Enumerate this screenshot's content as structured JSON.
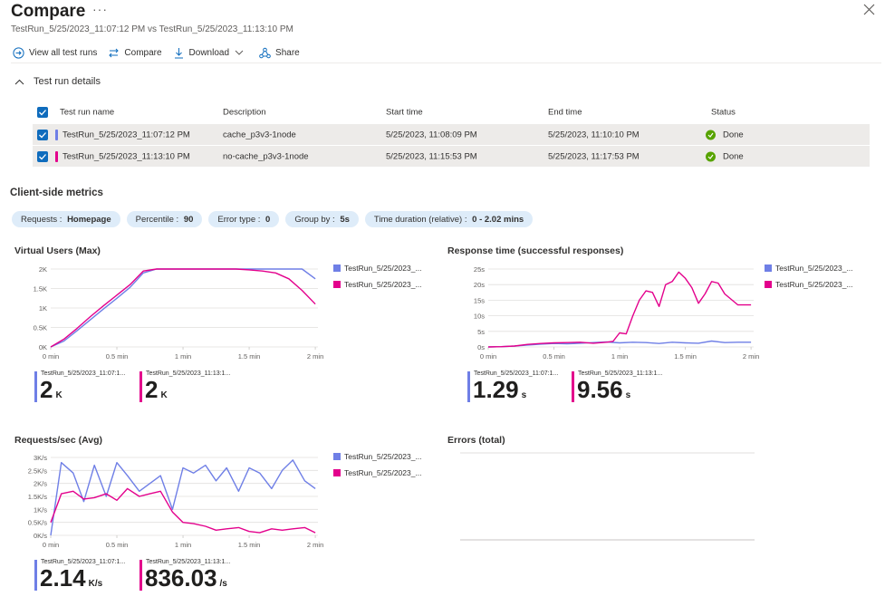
{
  "header": {
    "title": "Compare",
    "more": "···",
    "subtitle": "TestRun_5/25/2023_11:07:12 PM vs TestRun_5/25/2023_11:13:10 PM"
  },
  "toolbar": {
    "view_all": "View all test runs",
    "compare": "Compare",
    "download": "Download",
    "share": "Share"
  },
  "details": {
    "section_label": "Test run details",
    "columns": [
      "Test run name",
      "Description",
      "Start time",
      "End time",
      "Status"
    ],
    "rows": [
      {
        "name": "TestRun_5/25/2023_11:07:12 PM",
        "description": "cache_p3v3-1node",
        "start": "5/25/2023, 11:08:09 PM",
        "end": "5/25/2023, 11:10:10 PM",
        "status": "Done",
        "color": "#6f7fe6"
      },
      {
        "name": "TestRun_5/25/2023_11:13:10 PM",
        "description": "no-cache_p3v3-1node",
        "start": "5/25/2023, 11:15:53 PM",
        "end": "5/25/2023, 11:17:53 PM",
        "status": "Done",
        "color": "#e3008c"
      }
    ]
  },
  "metrics": {
    "title": "Client-side metrics",
    "filters": [
      {
        "key": "Requests",
        "sep": " : ",
        "value": "Homepage"
      },
      {
        "key": "Percentile",
        "sep": " : ",
        "value": "90"
      },
      {
        "key": "Error type",
        "sep": " : ",
        "value": "0"
      },
      {
        "key": "Group by",
        "sep": " : ",
        "value": "5s"
      },
      {
        "key": "Time duration (relative)",
        "sep": " : ",
        "value": "0 - 2.02 mins"
      }
    ]
  },
  "colors": {
    "series1": "#6f7fe6",
    "series2": "#e3008c",
    "grid": "#e1dfdd",
    "axis": "#605e5c"
  },
  "chart_data": [
    {
      "type": "line",
      "title": "Virtual Users (Max)",
      "xlabel": "",
      "ylabel": "",
      "x_ticks": [
        "0 min",
        "0.5 min",
        "1 min",
        "1.5 min",
        "2 min"
      ],
      "y_ticks": [
        "0K",
        "0.5K",
        "1K",
        "1.5K",
        "2K"
      ],
      "xlim": [
        0,
        2.02
      ],
      "ylim": [
        0,
        2000
      ],
      "legend": [
        "TestRun_5/25/2023_...",
        "TestRun_5/25/2023_..."
      ],
      "series": [
        {
          "x": [
            0,
            0.1,
            0.2,
            0.3,
            0.4,
            0.5,
            0.6,
            0.7,
            0.8,
            0.9,
            1.0,
            1.1,
            1.2,
            1.3,
            1.4,
            1.5,
            1.6,
            1.7,
            1.8,
            1.9,
            2.0
          ],
          "y": [
            0,
            150,
            420,
            700,
            980,
            1250,
            1530,
            1900,
            2000,
            2000,
            2000,
            2000,
            2000,
            2000,
            2000,
            2000,
            2000,
            2000,
            2000,
            2000,
            1750
          ]
        },
        {
          "x": [
            0,
            0.1,
            0.2,
            0.3,
            0.4,
            0.5,
            0.6,
            0.7,
            0.8,
            0.9,
            1.0,
            1.1,
            1.2,
            1.3,
            1.4,
            1.5,
            1.6,
            1.7,
            1.8,
            1.9,
            2.0
          ],
          "y": [
            0,
            200,
            480,
            780,
            1060,
            1330,
            1600,
            1950,
            2000,
            2000,
            2000,
            2000,
            2000,
            2000,
            2000,
            1980,
            1950,
            1900,
            1750,
            1450,
            1100
          ]
        }
      ],
      "stats": [
        {
          "label": "TestRun_5/25/2023_11:07:1...",
          "value": "2",
          "unit": "K"
        },
        {
          "label": "TestRun_5/25/2023_11:13:1...",
          "value": "2",
          "unit": "K"
        }
      ]
    },
    {
      "type": "line",
      "title": "Response time (successful responses)",
      "xlabel": "",
      "ylabel": "",
      "x_ticks": [
        "0 min",
        "0.5 min",
        "1 min",
        "1.5 min",
        "2 min"
      ],
      "y_ticks": [
        "0s",
        "5s",
        "10s",
        "15s",
        "20s",
        "25s"
      ],
      "xlim": [
        0,
        2.02
      ],
      "ylim": [
        0,
        25
      ],
      "legend": [
        "TestRun_5/25/2023_...",
        "TestRun_5/25/2023_..."
      ],
      "series": [
        {
          "x": [
            0,
            0.1,
            0.2,
            0.3,
            0.4,
            0.5,
            0.6,
            0.7,
            0.8,
            0.9,
            1.0,
            1.1,
            1.2,
            1.3,
            1.4,
            1.5,
            1.6,
            1.7,
            1.8,
            1.9,
            2.0
          ],
          "y": [
            0,
            0.1,
            0.3,
            0.6,
            0.9,
            1.1,
            1.0,
            1.2,
            1.4,
            1.6,
            1.3,
            1.5,
            1.4,
            1.1,
            1.5,
            1.3,
            1.2,
            1.9,
            1.4,
            1.5,
            1.5
          ]
        },
        {
          "x": [
            0,
            0.1,
            0.2,
            0.3,
            0.4,
            0.5,
            0.6,
            0.7,
            0.8,
            0.9,
            0.95,
            1.0,
            1.05,
            1.1,
            1.15,
            1.2,
            1.25,
            1.3,
            1.35,
            1.4,
            1.45,
            1.5,
            1.55,
            1.6,
            1.65,
            1.7,
            1.75,
            1.8,
            1.9,
            2.0
          ],
          "y": [
            0,
            0.1,
            0.3,
            0.8,
            1.1,
            1.3,
            1.4,
            1.5,
            1.2,
            1.5,
            1.8,
            4.5,
            4.2,
            10,
            15,
            18,
            17.5,
            13,
            20,
            21,
            24,
            22,
            19,
            14,
            17,
            21,
            20.5,
            17,
            13.5,
            13.5
          ]
        }
      ],
      "stats": [
        {
          "label": "TestRun_5/25/2023_11:07:1...",
          "value": "1.29",
          "unit": "s"
        },
        {
          "label": "TestRun_5/25/2023_11:13:1...",
          "value": "9.56",
          "unit": "s"
        }
      ]
    },
    {
      "type": "line",
      "title": "Requests/sec (Avg)",
      "xlabel": "",
      "ylabel": "",
      "x_ticks": [
        "0 min",
        "0.5 min",
        "1 min",
        "1.5 min",
        "2 min"
      ],
      "y_ticks": [
        "0K/s",
        "0.5K/s",
        "1K/s",
        "1.5K/s",
        "2K/s",
        "2.5K/s",
        "3K/s"
      ],
      "xlim": [
        0,
        2.02
      ],
      "ylim": [
        0,
        3000
      ],
      "legend": [
        "TestRun_5/25/2023_...",
        "TestRun_5/25/2023_..."
      ],
      "series": [
        {
          "x": [
            0,
            0.08,
            0.17,
            0.25,
            0.33,
            0.42,
            0.5,
            0.58,
            0.67,
            0.75,
            0.83,
            0.92,
            1.0,
            1.08,
            1.17,
            1.25,
            1.33,
            1.42,
            1.5,
            1.58,
            1.67,
            1.75,
            1.83,
            1.92,
            2.0
          ],
          "y": [
            0,
            2800,
            2400,
            1300,
            2700,
            1500,
            2800,
            2300,
            1700,
            2000,
            2300,
            1000,
            2600,
            2400,
            2700,
            2100,
            2600,
            1700,
            2600,
            2400,
            1800,
            2500,
            2900,
            2100,
            1800
          ]
        },
        {
          "x": [
            0,
            0.08,
            0.17,
            0.25,
            0.33,
            0.42,
            0.5,
            0.58,
            0.67,
            0.75,
            0.83,
            0.92,
            1.0,
            1.08,
            1.17,
            1.25,
            1.33,
            1.42,
            1.5,
            1.58,
            1.67,
            1.75,
            1.83,
            1.92,
            2.0
          ],
          "y": [
            500,
            1600,
            1700,
            1400,
            1450,
            1600,
            1350,
            1800,
            1500,
            1600,
            1700,
            900,
            500,
            450,
            350,
            200,
            250,
            300,
            150,
            100,
            250,
            200,
            250,
            300,
            100
          ]
        }
      ],
      "stats": [
        {
          "label": "TestRun_5/25/2023_11:07:1...",
          "value": "2.14",
          "unit": "K/s"
        },
        {
          "label": "TestRun_5/25/2023_11:13:1...",
          "value": "836.03",
          "unit": "/s"
        }
      ]
    },
    {
      "type": "line",
      "title": "Errors (total)",
      "series": []
    }
  ]
}
